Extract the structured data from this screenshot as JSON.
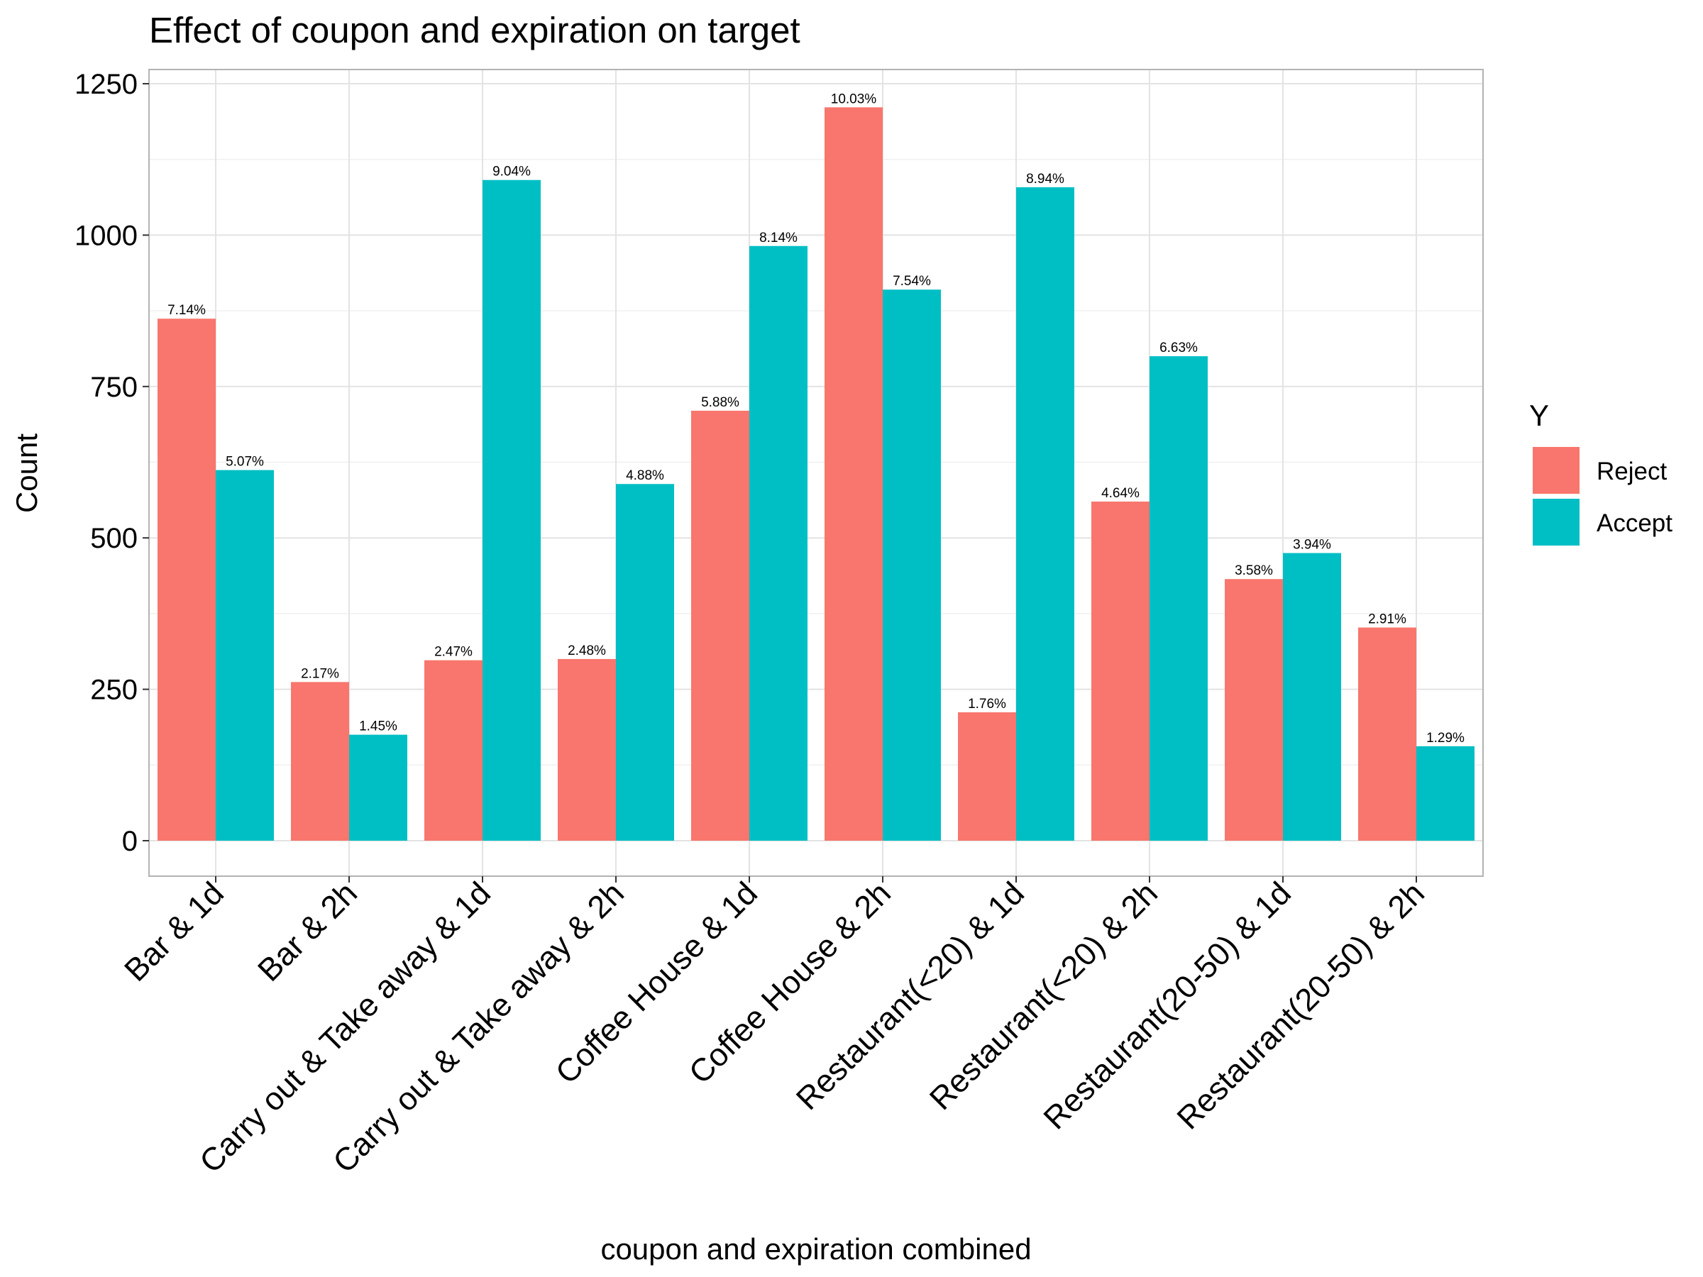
{
  "chart_data": {
    "type": "bar",
    "title": "Effect of coupon and expiration on target",
    "xlabel": "coupon and expiration combined",
    "ylabel": "Count",
    "ylim": [
      0,
      1250
    ],
    "y_ticks": [
      0,
      250,
      500,
      750,
      1000,
      1250
    ],
    "grid": true,
    "legend": {
      "title": "Y",
      "position": "right"
    },
    "categories": [
      "Bar & 1d",
      "Bar & 2h",
      "Carry out & Take away & 1d",
      "Carry out & Take away & 2h",
      "Coffee House & 1d",
      "Coffee House & 2h",
      "Restaurant(<20) & 1d",
      "Restaurant(<20) & 2h",
      "Restaurant(20-50) & 1d",
      "Restaurant(20-50) & 2h"
    ],
    "series": [
      {
        "name": "Reject",
        "color": "#F8766D",
        "values": [
          862,
          262,
          298,
          300,
          710,
          1211,
          212,
          560,
          432,
          352
        ],
        "labels": [
          "7.14%",
          "2.17%",
          "2.47%",
          "2.48%",
          "5.88%",
          "10.03%",
          "1.76%",
          "4.64%",
          "3.58%",
          "2.91%"
        ]
      },
      {
        "name": "Accept",
        "color": "#00BFC4",
        "values": [
          612,
          175,
          1091,
          589,
          982,
          910,
          1079,
          800,
          475,
          156
        ],
        "labels": [
          "5.07%",
          "1.45%",
          "9.04%",
          "4.88%",
          "8.14%",
          "7.54%",
          "8.94%",
          "6.63%",
          "3.94%",
          "1.29%"
        ]
      }
    ]
  }
}
